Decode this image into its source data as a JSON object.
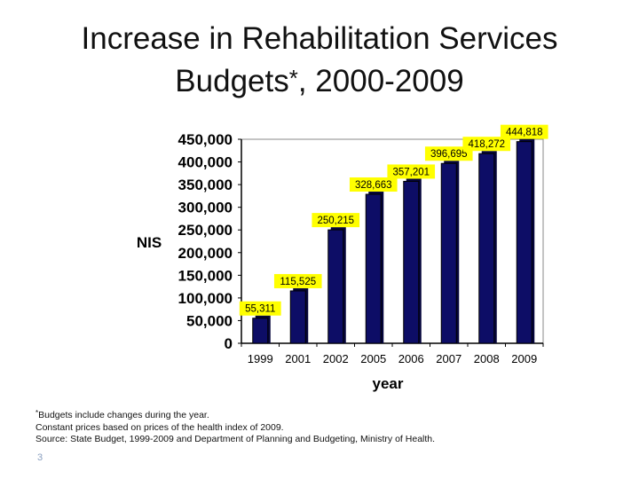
{
  "slide": {
    "title_line1": "Increase in Rehabilitation Services",
    "title_line2_main": "Budgets",
    "title_line2_asterisk": "*",
    "title_line2_rest": ", 2000-2009",
    "slide_number": "3"
  },
  "footnotes": {
    "line1_asterisk": "*",
    "line1_text": "Budgets include changes during the year.",
    "line2": "Constant prices based on prices of the health index of 2009.",
    "line3": "Source: State Budget, 1999-2009 and Department of Planning and Budgeting, Ministry of Health."
  },
  "chart_data": {
    "type": "bar",
    "categories": [
      "1999",
      "2001",
      "2002",
      "2005",
      "2006",
      "2007",
      "2008",
      "2009"
    ],
    "values": [
      55311,
      115525,
      250215,
      328663,
      357201,
      396695,
      418272,
      444818
    ],
    "data_labels": [
      "55,311",
      "115,525",
      "250,215",
      "328,663",
      "357,201",
      "396,695",
      "418,272",
      "444,818"
    ],
    "y_ticks": [
      "0",
      "50,000",
      "100,000",
      "150,000",
      "200,000",
      "250,000",
      "300,000",
      "350,000",
      "400,000",
      "450,000"
    ],
    "ylim": [
      0,
      450000
    ],
    "xlabel": "year",
    "ylabel": "NIS",
    "grid": false,
    "colors": {
      "bar": "#0d0d66",
      "bar_edge": "#000000",
      "label_bg": "#ffff00"
    }
  }
}
